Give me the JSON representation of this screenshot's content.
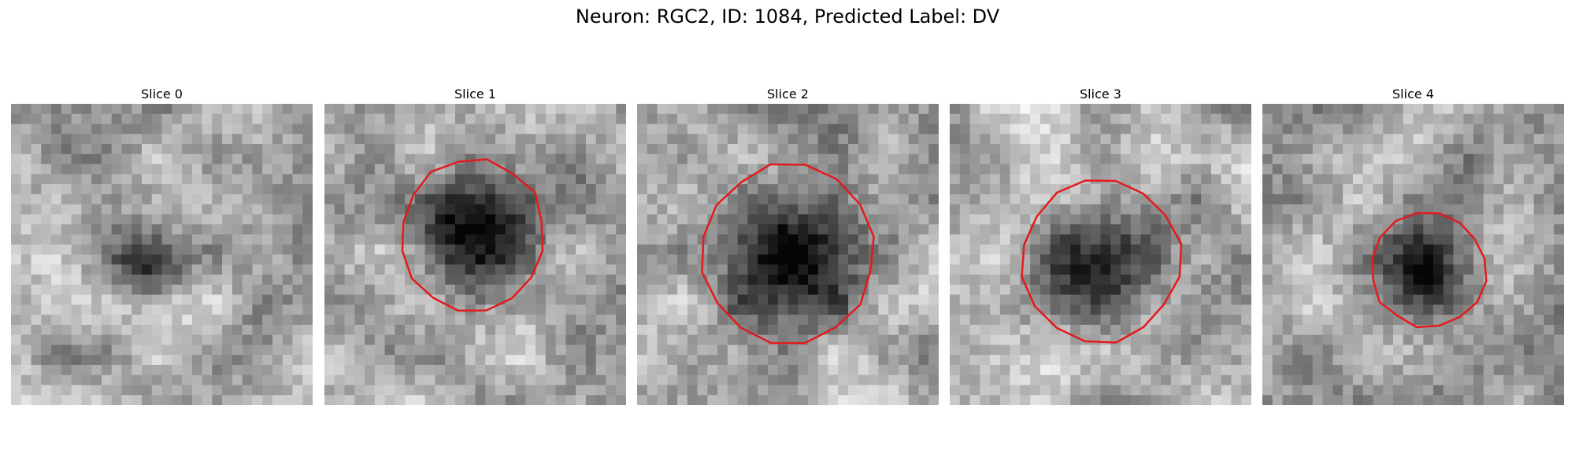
{
  "figure": {
    "title": "Neuron: RGC2, ID: 1084, Predicted Label: DV"
  },
  "panels": [
    {
      "title": "Slice 0",
      "outline": false,
      "dark_spot": [
        0.46,
        0.54,
        0.14,
        0.13,
        0.45
      ],
      "seed": 11
    },
    {
      "title": "Slice 1",
      "outline": true,
      "dark_spot": [
        0.49,
        0.44,
        0.23,
        0.24,
        0.75
      ],
      "seed": 23
    },
    {
      "title": "Slice 2",
      "outline": true,
      "dark_spot": [
        0.5,
        0.5,
        0.27,
        0.28,
        0.72
      ],
      "seed": 37
    },
    {
      "title": "Slice 3",
      "outline": true,
      "dark_spot": [
        0.5,
        0.52,
        0.25,
        0.26,
        0.6
      ],
      "seed": 41
    },
    {
      "title": "Slice 4",
      "outline": true,
      "dark_spot": [
        0.55,
        0.55,
        0.18,
        0.18,
        0.55
      ],
      "seed": 53
    }
  ],
  "colors": {
    "outline": "#e31a1c"
  }
}
